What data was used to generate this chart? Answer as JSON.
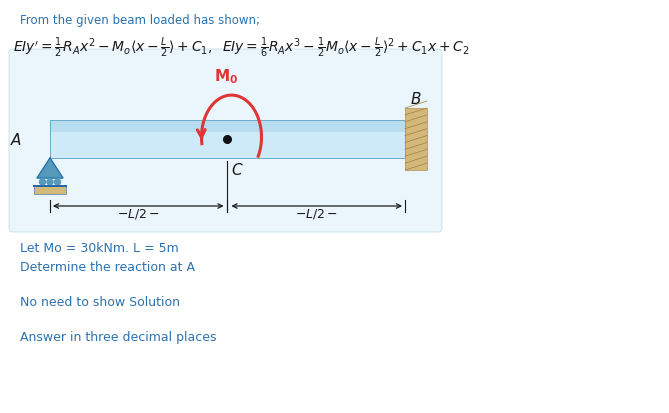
{
  "bg_color": "#ffffff",
  "diagram_bg": "#eaf6fb",
  "title_text": "From the given beam loaded has shown;",
  "line1": "Let Mo = 30kNm. L = 5m",
  "line2": "Determine the reaction at A",
  "line3": "No need to show Solution",
  "line4": "Answer in three decimal places",
  "text_color": "#2c72b0",
  "eq_color": "#1a1a1a",
  "Mo_color": "#e03535",
  "beam_top_color": "#b0d8ee",
  "beam_mid_color": "#ceeaf8",
  "beam_line_color": "#6aaac8",
  "wall_color": "#d4b87a",
  "wall_edge_color": "#b09050",
  "support_fill": "#5599bb",
  "support_edge": "#2266aa",
  "label_color": "#1a1a1a",
  "dim_color": "#1a1a1a",
  "figw": 6.69,
  "figh": 4.14,
  "dpi": 100
}
